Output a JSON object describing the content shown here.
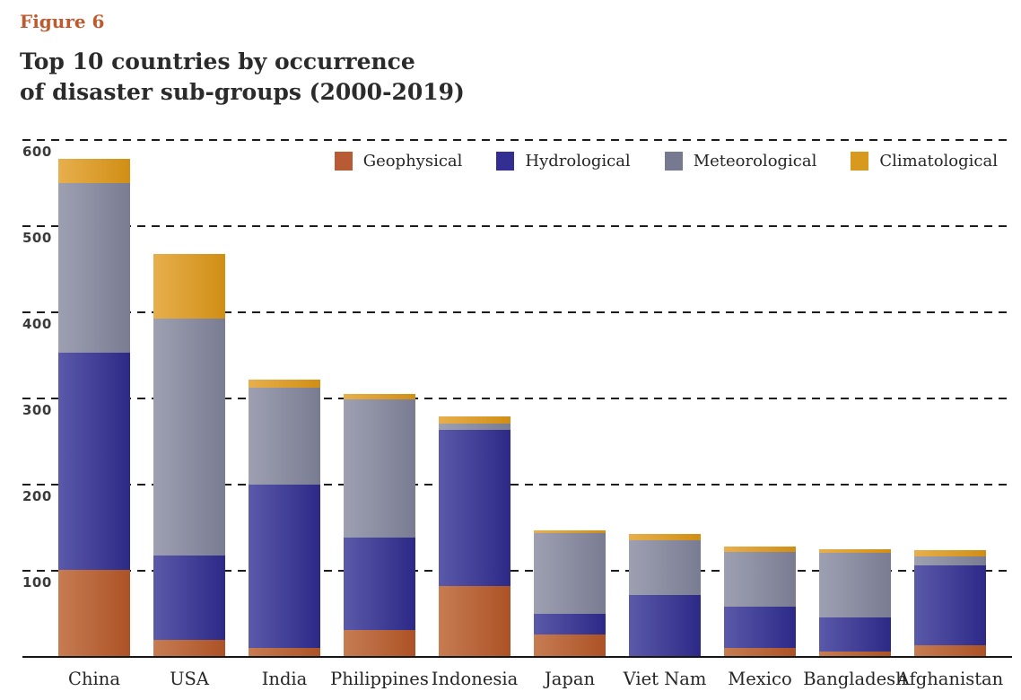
{
  "figure_label": "Figure 6",
  "title_line1": "Top 10 countries by occurrence",
  "title_line2": "of disaster sub-groups (2000-2019)",
  "chart_data": {
    "type": "bar",
    "stacked": true,
    "title": "Top 10 countries by occurrence of disaster sub-groups (2000-2019)",
    "xlabel": "",
    "ylabel": "",
    "ylim": [
      0,
      600
    ],
    "yticks": [
      600,
      500,
      400,
      300,
      200,
      100
    ],
    "grid": "horizontal-dashed",
    "legend_position": "top-right-inside",
    "categories": [
      "China",
      "USA",
      "India",
      "Philippines",
      "Indonesia",
      "Japan",
      "Viet Nam",
      "Mexico",
      "Bangladesh",
      "Afghanistan"
    ],
    "series": [
      {
        "name": "Geophysical",
        "color": "#B85A33",
        "gradient": [
          "#C77C52",
          "#AC5226"
        ],
        "values": [
          100,
          19,
          9,
          30,
          81,
          25,
          0,
          9,
          5,
          13
        ]
      },
      {
        "name": "Hydrological",
        "color": "#332E91",
        "gradient": [
          "#5B59A9",
          "#2C2987"
        ],
        "values": [
          252,
          98,
          190,
          107,
          182,
          24,
          71,
          48,
          40,
          92
        ]
      },
      {
        "name": "Meteorological",
        "color": "#76798F",
        "gradient": [
          "#9EA0B2",
          "#797C92"
        ],
        "values": [
          197,
          275,
          112,
          161,
          7,
          94,
          63,
          64,
          75,
          11
        ]
      },
      {
        "name": "Climatological",
        "color": "#D8991F",
        "gradient": [
          "#E7AF4D",
          "#D08E14"
        ],
        "values": [
          28,
          75,
          10,
          6,
          8,
          3,
          8,
          6,
          4,
          7
        ]
      }
    ]
  }
}
